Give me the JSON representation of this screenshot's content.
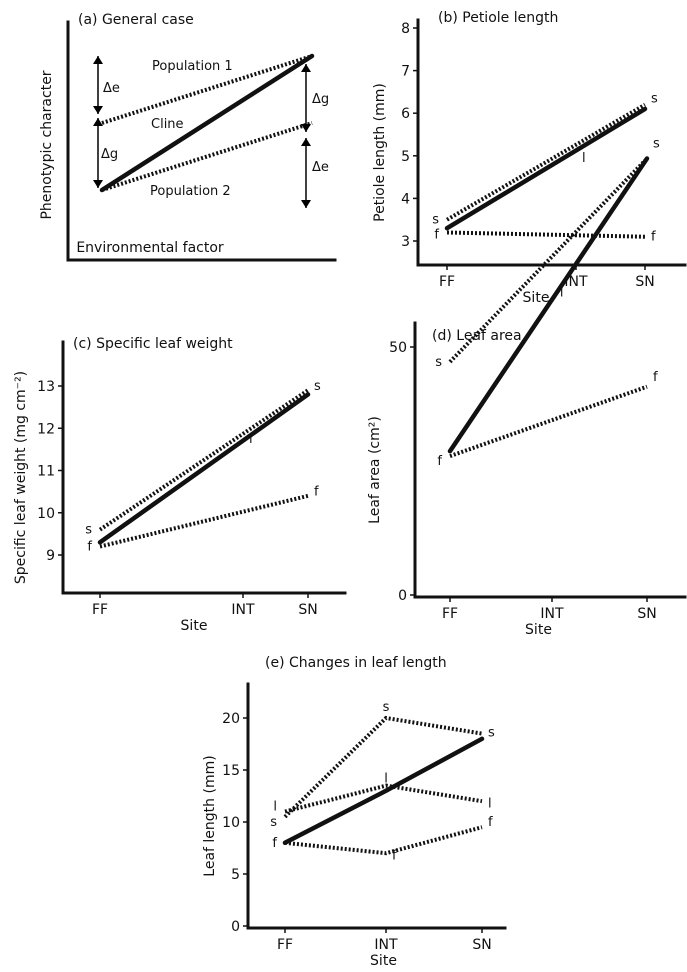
{
  "chart_data": [
    {
      "id": "a",
      "type": "line",
      "title": "(a) General case",
      "xlabel": "Environmental factor",
      "ylabel": "Phenotypic character",
      "x": [
        0,
        1
      ],
      "ylim": [
        0,
        4
      ],
      "series": [
        {
          "name": "Cline",
          "style": "solid",
          "values": [
            1,
            3
          ]
        },
        {
          "name": "Population 1",
          "style": "dotted",
          "values": [
            2,
            3
          ]
        },
        {
          "name": "Population 2",
          "style": "dotted",
          "values": [
            1,
            2
          ]
        }
      ],
      "annotations": [
        "Δe",
        "Δg",
        "Δg",
        "Δe"
      ]
    },
    {
      "id": "b",
      "type": "line",
      "title": "(b) Petiole length",
      "xlabel": "Site",
      "ylabel": "Petiole length (mm)",
      "categories": [
        "FF",
        "INT",
        "SN"
      ],
      "category_x": [
        0,
        2,
        2.9
      ],
      "yticks": [
        3,
        4,
        5,
        6,
        7,
        8
      ],
      "ylim": [
        2.8,
        8.3
      ],
      "series": [
        {
          "name": "s",
          "style": "dotted",
          "x": [
            0,
            2.9
          ],
          "values": [
            3.5,
            6.2
          ]
        },
        {
          "name": "l",
          "style": "solid",
          "x": [
            0,
            2.9
          ],
          "values": [
            3.3,
            6.1
          ]
        },
        {
          "name": "f",
          "style": "dotted",
          "x": [
            0,
            2.9
          ],
          "values": [
            3.2,
            3.1
          ]
        }
      ],
      "end_labels": [
        {
          "text": "s",
          "x": 0,
          "y": 3.5,
          "side": "left"
        },
        {
          "text": "f",
          "x": 0,
          "y": 3.15,
          "side": "left"
        },
        {
          "text": "s",
          "x": 2.9,
          "y": 6.35,
          "side": "right"
        },
        {
          "text": "l",
          "x": 2.0,
          "y": 4.95,
          "side": "right"
        },
        {
          "text": "f",
          "x": 2.9,
          "y": 3.1,
          "side": "right"
        }
      ]
    },
    {
      "id": "c",
      "type": "line",
      "title": "(c) Specific leaf weight",
      "xlabel": "Site",
      "ylabel": "Specific leaf weight (mg cm⁻²)",
      "categories": [
        "FF",
        "INT",
        "SN"
      ],
      "category_x": [
        0,
        2,
        2.9
      ],
      "yticks": [
        9,
        10,
        11,
        12,
        13
      ],
      "ylim": [
        8.6,
        13.9
      ],
      "series": [
        {
          "name": "s",
          "style": "dotted",
          "x": [
            0,
            2.9
          ],
          "values": [
            9.6,
            12.9
          ]
        },
        {
          "name": "l",
          "style": "solid",
          "x": [
            0,
            2.9
          ],
          "values": [
            9.3,
            12.8
          ]
        },
        {
          "name": "f",
          "style": "dotted",
          "x": [
            0,
            2.9
          ],
          "values": [
            9.2,
            10.4
          ]
        }
      ],
      "end_labels": [
        {
          "text": "s",
          "x": 0,
          "y": 9.6,
          "side": "left"
        },
        {
          "text": "f",
          "x": 0,
          "y": 9.2,
          "side": "left"
        },
        {
          "text": "s",
          "x": 2.9,
          "y": 13.0,
          "side": "right"
        },
        {
          "text": "l",
          "x": 2.0,
          "y": 11.75,
          "side": "right"
        },
        {
          "text": "f",
          "x": 2.9,
          "y": 10.5,
          "side": "right"
        }
      ]
    },
    {
      "id": "d",
      "type": "line",
      "title": "(d) Leaf area",
      "xlabel": "Site",
      "ylabel": "Leaf area (cm²)",
      "categories": [
        "FF",
        "INT",
        "SN"
      ],
      "category_x": [
        0,
        1,
        2
      ],
      "yticks": [
        0,
        50
      ],
      "ylim": [
        0,
        92
      ],
      "series": [
        {
          "name": "s",
          "style": "dotted",
          "x": [
            0,
            2
          ],
          "values": [
            47,
            88
          ]
        },
        {
          "name": "l",
          "style": "solid",
          "x": [
            0,
            2
          ],
          "values": [
            29,
            88
          ]
        },
        {
          "name": "f",
          "style": "dotted",
          "x": [
            0,
            2
          ],
          "values": [
            28,
            42
          ]
        }
      ],
      "end_labels": [
        {
          "text": "s",
          "x": 0,
          "y": 47,
          "side": "left"
        },
        {
          "text": "f",
          "x": 0,
          "y": 27,
          "side": "left"
        },
        {
          "text": "s",
          "x": 2,
          "y": 91,
          "side": "right"
        },
        {
          "text": "l",
          "x": 1.02,
          "y": 61,
          "side": "right"
        },
        {
          "text": "f",
          "x": 2,
          "y": 44,
          "side": "right"
        }
      ]
    },
    {
      "id": "e",
      "type": "line",
      "title": "(e) Changes in leaf length",
      "xlabel": "Site",
      "ylabel": "Leaf length (mm)",
      "categories": [
        "FF",
        "INT",
        "SN"
      ],
      "category_x": [
        0,
        1,
        2
      ],
      "yticks": [
        0,
        5,
        10,
        15,
        20
      ],
      "ylim": [
        0,
        23
      ],
      "series": [
        {
          "name": "s",
          "style": "dotted",
          "x": [
            0,
            1,
            2
          ],
          "values": [
            10.5,
            20,
            18.5
          ]
        },
        {
          "name": "l",
          "style": "dotted",
          "x": [
            0,
            1,
            2
          ],
          "values": [
            11,
            13.5,
            12
          ]
        },
        {
          "name": "f",
          "style": "dotted",
          "x": [
            0,
            1,
            2
          ],
          "values": [
            8,
            7,
            9.5
          ]
        },
        {
          "name": "cline",
          "style": "solid",
          "x": [
            0,
            1,
            2
          ],
          "values": [
            8,
            13,
            18
          ]
        }
      ],
      "end_labels": [
        {
          "text": "l",
          "x": 0,
          "y": 11.5,
          "side": "left"
        },
        {
          "text": "s",
          "x": 0,
          "y": 10.0,
          "side": "left"
        },
        {
          "text": "f",
          "x": 0,
          "y": 8.0,
          "side": "left"
        },
        {
          "text": "s",
          "x": 1,
          "y": 20.5,
          "side": "above"
        },
        {
          "text": "l",
          "x": 1,
          "y": 13.6,
          "side": "above"
        },
        {
          "text": "f",
          "x": 1,
          "y": 6.8,
          "side": "right"
        },
        {
          "text": "s",
          "x": 2,
          "y": 18.6,
          "side": "right"
        },
        {
          "text": "l",
          "x": 2,
          "y": 11.8,
          "side": "right"
        },
        {
          "text": "f",
          "x": 2,
          "y": 10.0,
          "side": "right"
        }
      ]
    }
  ]
}
